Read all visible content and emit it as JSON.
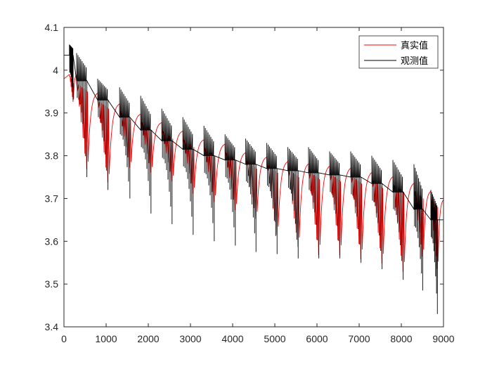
{
  "chart_data": {
    "type": "line",
    "title": "",
    "xlabel": "",
    "ylabel": "",
    "xlim": [
      0,
      9000
    ],
    "ylim": [
      3.4,
      4.1
    ],
    "xticks": [
      "0",
      "1000",
      "2000",
      "3000",
      "4000",
      "5000",
      "6000",
      "7000",
      "8000",
      "9000"
    ],
    "yticks": [
      "3.4",
      "3.5",
      "3.6",
      "3.7",
      "3.8",
      "3.9",
      "4",
      "4.1"
    ],
    "grid": false,
    "legend_position": "top-right",
    "pulse_period": 500,
    "series": [
      {
        "name": "真实值",
        "color": "#ff0000",
        "pulse_starts": [
          130,
          300,
          800,
          1320,
          1820,
          2320,
          2820,
          3320,
          3820,
          4310,
          4810,
          5310,
          5800,
          6300,
          6800,
          7300,
          7800,
          8300,
          8700
        ],
        "baselines": [
          3.99,
          3.97,
          3.93,
          3.905,
          3.88,
          3.86,
          3.84,
          3.82,
          3.81,
          3.79,
          3.78,
          3.77,
          3.765,
          3.76,
          3.755,
          3.745,
          3.735,
          3.72,
          3.7
        ],
        "minima": [
          3.92,
          3.75,
          3.72,
          3.76,
          3.75,
          3.73,
          3.7,
          3.68,
          3.66,
          3.64,
          3.6,
          3.57,
          3.55,
          3.55,
          3.54,
          3.53,
          3.51,
          3.55,
          3.52
        ]
      },
      {
        "name": "观测值",
        "color": "#000000",
        "pulse_starts": [
          130,
          300,
          800,
          1320,
          1820,
          2320,
          2820,
          3320,
          3820,
          4310,
          4810,
          5310,
          5800,
          6300,
          6800,
          7300,
          7800,
          8300,
          8700
        ],
        "steps": [
          4.035,
          3.975,
          3.93,
          3.89,
          3.86,
          3.835,
          3.815,
          3.8,
          3.79,
          3.78,
          3.77,
          3.765,
          3.76,
          3.755,
          3.75,
          3.735,
          3.715,
          3.675,
          3.65
        ],
        "spike_highs": [
          4.06,
          4.04,
          3.98,
          3.96,
          3.94,
          3.91,
          3.89,
          3.87,
          3.85,
          3.84,
          3.83,
          3.82,
          3.82,
          3.81,
          3.81,
          3.8,
          3.79,
          3.78,
          3.72
        ],
        "spike_lows": [
          3.93,
          3.75,
          3.72,
          3.7,
          3.665,
          3.64,
          3.615,
          3.6,
          3.59,
          3.575,
          3.57,
          3.56,
          3.56,
          3.56,
          3.55,
          3.535,
          3.51,
          3.485,
          3.43
        ]
      }
    ]
  }
}
